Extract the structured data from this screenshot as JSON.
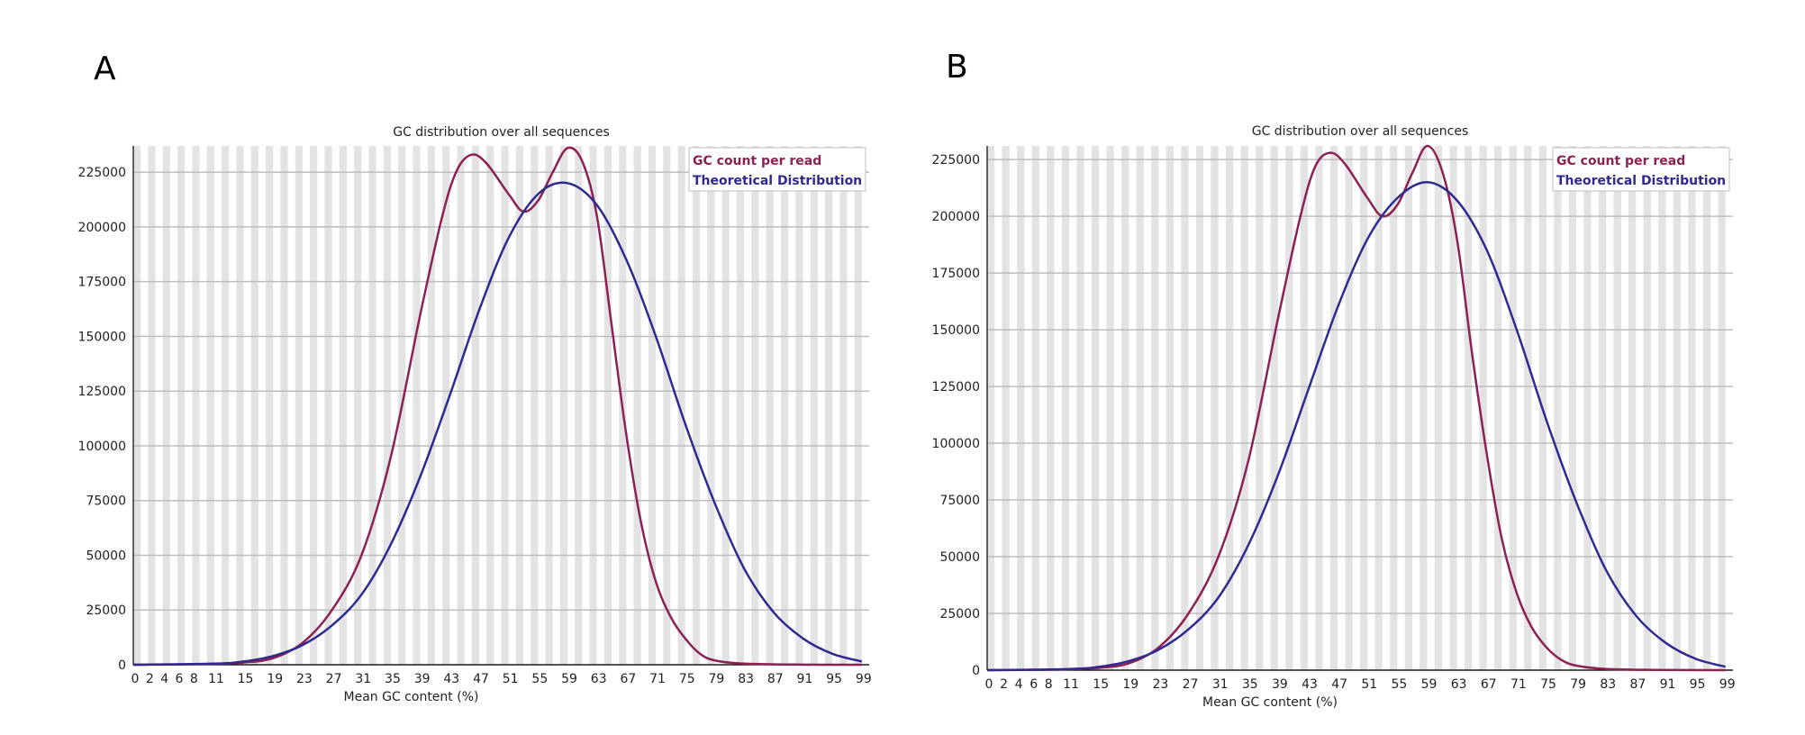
{
  "panels": [
    {
      "letter": "A"
    },
    {
      "letter": "B"
    }
  ],
  "chart_data": [
    {
      "type": "line",
      "title": "GC distribution over all sequences",
      "xlabel": "Mean GC content (%)",
      "ylabel": "",
      "x_tick_labels": [
        "0",
        "2",
        "4",
        "6",
        "8",
        "11",
        "15",
        "19",
        "23",
        "27",
        "31",
        "35",
        "39",
        "43",
        "47",
        "51",
        "55",
        "59",
        "63",
        "67",
        "71",
        "75",
        "79",
        "83",
        "87",
        "91",
        "95",
        "99"
      ],
      "y_tick_labels": [
        "0",
        "25000",
        "50000",
        "75000",
        "100000",
        "125000",
        "150000",
        "175000",
        "200000",
        "225000"
      ],
      "ylim": [
        0,
        237000
      ],
      "xlim": [
        0,
        100
      ],
      "grid": true,
      "legend_position": "top-right",
      "series": [
        {
          "name": "GC count per read",
          "color": "#8b2252",
          "points": [
            [
              0,
              0
            ],
            [
              10,
              300
            ],
            [
              15,
              1000
            ],
            [
              19,
              3000
            ],
            [
              23,
              10000
            ],
            [
              27,
              25000
            ],
            [
              31,
              50000
            ],
            [
              35,
              95000
            ],
            [
              39,
              160000
            ],
            [
              42,
              205000
            ],
            [
              44,
              226000
            ],
            [
              46,
              233000
            ],
            [
              48,
              229000
            ],
            [
              51,
              215000
            ],
            [
              53,
              207000
            ],
            [
              55,
              212000
            ],
            [
              57,
              225000
            ],
            [
              59,
              236000
            ],
            [
              61,
              230000
            ],
            [
              63,
              205000
            ],
            [
              65,
              155000
            ],
            [
              67,
              105000
            ],
            [
              69,
              65000
            ],
            [
              71,
              38000
            ],
            [
              73,
              22000
            ],
            [
              75,
              12000
            ],
            [
              77,
              5000
            ],
            [
              79,
              2000
            ],
            [
              83,
              500
            ],
            [
              90,
              100
            ],
            [
              99,
              0
            ]
          ]
        },
        {
          "name": "Theoretical Distribution",
          "color": "#2e2a8f",
          "points": [
            [
              0,
              0
            ],
            [
              11,
              500
            ],
            [
              15,
              1500
            ],
            [
              19,
              4000
            ],
            [
              23,
              9000
            ],
            [
              27,
              18000
            ],
            [
              31,
              32000
            ],
            [
              35,
              55000
            ],
            [
              39,
              86000
            ],
            [
              43,
              123000
            ],
            [
              47,
              162000
            ],
            [
              51,
              195000
            ],
            [
              55,
              215000
            ],
            [
              59,
              220000
            ],
            [
              63,
              210000
            ],
            [
              67,
              185000
            ],
            [
              71,
              150000
            ],
            [
              75,
              110000
            ],
            [
              79,
              74000
            ],
            [
              83,
              44000
            ],
            [
              87,
              24000
            ],
            [
              91,
              12000
            ],
            [
              95,
              5000
            ],
            [
              99,
              1500
            ]
          ]
        }
      ]
    },
    {
      "type": "line",
      "title": "GC distribution over all sequences",
      "xlabel": "Mean GC content (%)",
      "ylabel": "",
      "x_tick_labels": [
        "0",
        "2",
        "4",
        "6",
        "8",
        "11",
        "15",
        "19",
        "23",
        "27",
        "31",
        "35",
        "39",
        "43",
        "47",
        "51",
        "55",
        "59",
        "63",
        "67",
        "71",
        "75",
        "79",
        "83",
        "87",
        "91",
        "95",
        "99"
      ],
      "y_tick_labels": [
        "0",
        "25000",
        "50000",
        "75000",
        "100000",
        "125000",
        "150000",
        "175000",
        "200000",
        "225000"
      ],
      "ylim": [
        0,
        231000
      ],
      "xlim": [
        0,
        100
      ],
      "grid": true,
      "legend_position": "top-right",
      "series": [
        {
          "name": "GC count per read",
          "color": "#8b2252",
          "points": [
            [
              0,
              0
            ],
            [
              10,
              300
            ],
            [
              15,
              1000
            ],
            [
              19,
              3000
            ],
            [
              23,
              10000
            ],
            [
              27,
              25000
            ],
            [
              31,
              50000
            ],
            [
              35,
              92000
            ],
            [
              39,
              155000
            ],
            [
              42,
              200000
            ],
            [
              44,
              222000
            ],
            [
              46,
              228000
            ],
            [
              48,
              223000
            ],
            [
              51,
              208000
            ],
            [
              53,
              200000
            ],
            [
              55,
              205000
            ],
            [
              57,
              219000
            ],
            [
              59,
              231000
            ],
            [
              61,
              220000
            ],
            [
              63,
              190000
            ],
            [
              65,
              140000
            ],
            [
              67,
              95000
            ],
            [
              69,
              58000
            ],
            [
              71,
              34000
            ],
            [
              73,
              19000
            ],
            [
              75,
              10000
            ],
            [
              77,
              4500
            ],
            [
              79,
              2000
            ],
            [
              83,
              500
            ],
            [
              90,
              100
            ],
            [
              99,
              0
            ]
          ]
        },
        {
          "name": "Theoretical Distribution",
          "color": "#2e2a8f",
          "points": [
            [
              0,
              0
            ],
            [
              11,
              500
            ],
            [
              15,
              1500
            ],
            [
              19,
              4000
            ],
            [
              23,
              9000
            ],
            [
              27,
              18000
            ],
            [
              31,
              32000
            ],
            [
              35,
              55000
            ],
            [
              39,
              86000
            ],
            [
              43,
              123000
            ],
            [
              47,
              160000
            ],
            [
              51,
              190000
            ],
            [
              55,
              208000
            ],
            [
              59,
              215000
            ],
            [
              63,
              207000
            ],
            [
              67,
              185000
            ],
            [
              71,
              150000
            ],
            [
              75,
              110000
            ],
            [
              79,
              74000
            ],
            [
              83,
              44000
            ],
            [
              87,
              24000
            ],
            [
              91,
              12000
            ],
            [
              95,
              5000
            ],
            [
              99,
              1500
            ]
          ]
        }
      ]
    }
  ]
}
